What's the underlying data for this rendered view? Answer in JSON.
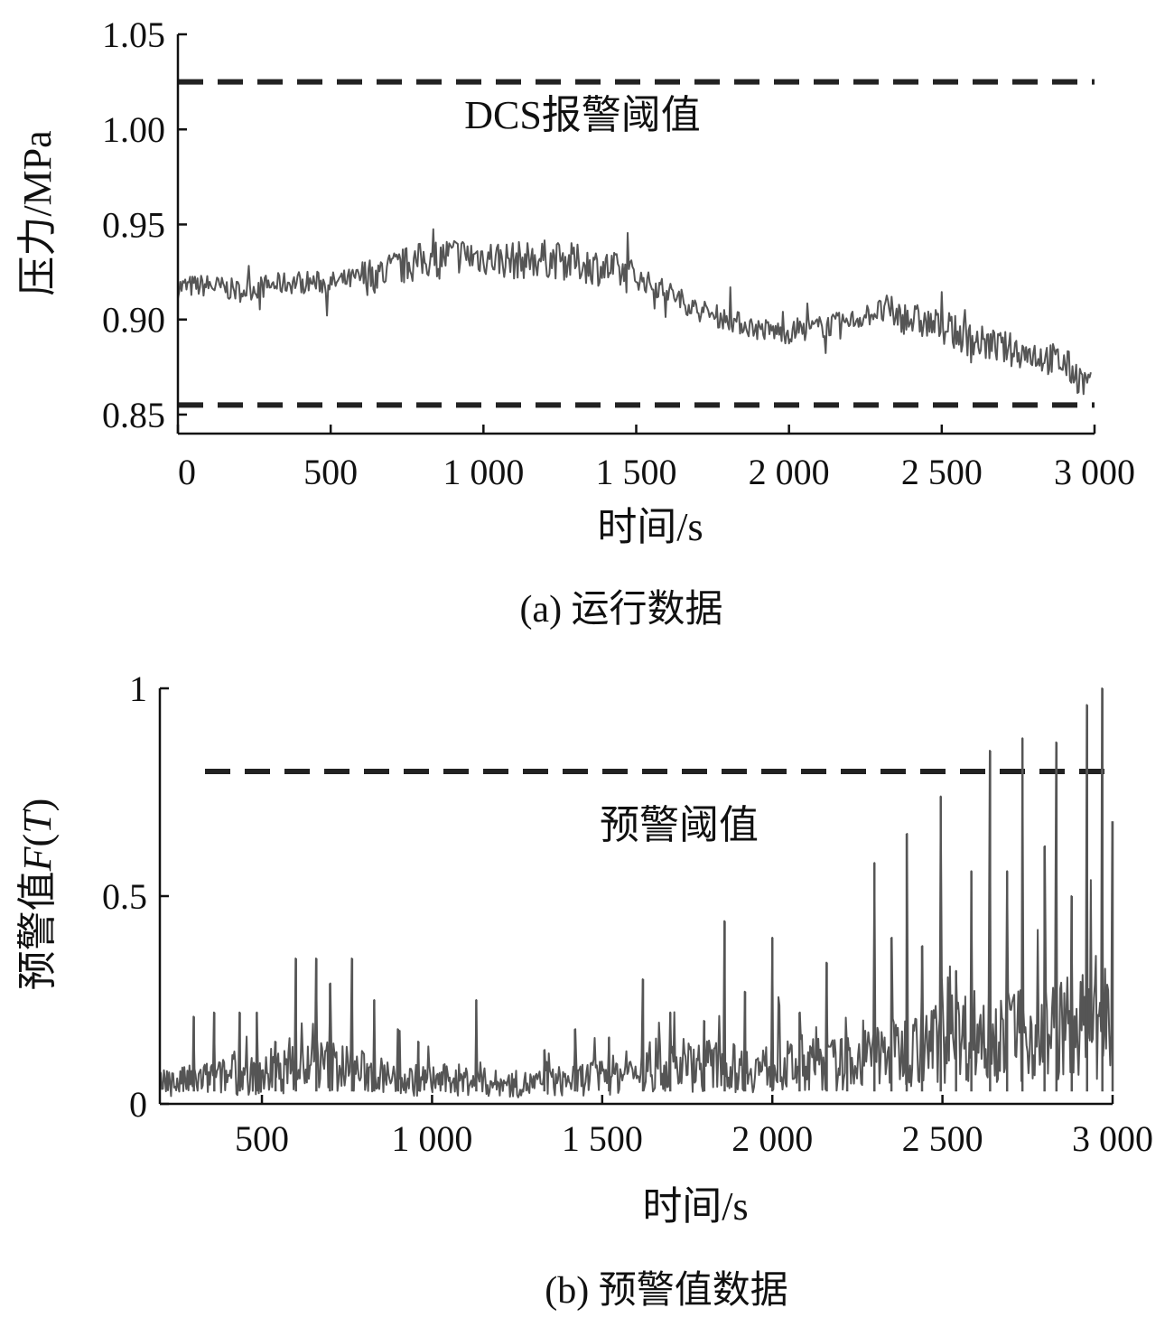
{
  "chart_data": [
    {
      "id": "a",
      "type": "line",
      "caption": "(a) 运行数据",
      "xlabel": "时间/s",
      "ylabel": "压力/MPa",
      "xlim": [
        0,
        3000
      ],
      "ylim": [
        0.84,
        1.05
      ],
      "xticks": [
        0,
        500,
        1000,
        1500,
        2000,
        2500,
        3000
      ],
      "xtick_labels": [
        "0",
        "500",
        "1 000",
        "1 500",
        "2 000",
        "2 500",
        "3 000"
      ],
      "yticks": [
        0.85,
        0.9,
        0.95,
        1.0,
        1.05
      ],
      "ytick_labels": [
        "0.85",
        "0.90",
        "0.95",
        "1.00",
        "1.05"
      ],
      "thresholds": [
        {
          "value": 1.025,
          "label": "DCS报警阈值"
        },
        {
          "value": 0.855,
          "label": ""
        }
      ],
      "series": [
        {
          "color": "#555555",
          "x": [
            0,
            100,
            200,
            300,
            400,
            500,
            600,
            700,
            800,
            900,
            1000,
            1100,
            1200,
            1300,
            1400,
            1500,
            1600,
            1700,
            1800,
            1900,
            2000,
            2100,
            2200,
            2300,
            2400,
            2500,
            2600,
            2700,
            2800,
            2900,
            2970
          ],
          "y": [
            0.917,
            0.918,
            0.915,
            0.918,
            0.92,
            0.919,
            0.922,
            0.926,
            0.931,
            0.934,
            0.933,
            0.931,
            0.932,
            0.93,
            0.927,
            0.922,
            0.915,
            0.905,
            0.9,
            0.895,
            0.893,
            0.896,
            0.899,
            0.905,
            0.9,
            0.896,
            0.889,
            0.885,
            0.882,
            0.877,
            0.866
          ]
        }
      ]
    },
    {
      "id": "b",
      "type": "line",
      "caption": "(b) 预警值数据",
      "xlabel": "时间/s",
      "ylabel": "预警值F(T)",
      "ylabel_parts": {
        "main": "预警值",
        "italic_f": "F",
        "paren_open": "(",
        "italic_t": "T",
        "paren_close": ")"
      },
      "xlim": [
        200,
        3000
      ],
      "ylim": [
        0,
        1
      ],
      "xticks": [
        500,
        1000,
        1500,
        2000,
        2500,
        3000
      ],
      "xtick_labels": [
        "500",
        "1 000",
        "1 500",
        "2 000",
        "2 500",
        "3 000"
      ],
      "yticks": [
        0,
        0.5,
        1
      ],
      "ytick_labels": [
        "0",
        "0.5",
        "1"
      ],
      "thresholds": [
        {
          "value": 0.8,
          "label": "预警阈值"
        }
      ],
      "series": [
        {
          "color": "#555555",
          "x": [
            200,
            300,
            400,
            500,
            600,
            700,
            800,
            900,
            1000,
            1100,
            1200,
            1300,
            1400,
            1500,
            1600,
            1700,
            1800,
            1900,
            2000,
            2100,
            2200,
            2300,
            2400,
            2500,
            2600,
            2700,
            2800,
            2900,
            2970
          ],
          "y": [
            0.05,
            0.06,
            0.07,
            0.07,
            0.09,
            0.1,
            0.08,
            0.06,
            0.06,
            0.06,
            0.05,
            0.05,
            0.06,
            0.07,
            0.08,
            0.09,
            0.1,
            0.09,
            0.09,
            0.1,
            0.1,
            0.12,
            0.14,
            0.16,
            0.18,
            0.17,
            0.18,
            0.2,
            0.18
          ]
        }
      ],
      "peaks": [
        {
          "x": 300,
          "y": 0.21
        },
        {
          "x": 360,
          "y": 0.22
        },
        {
          "x": 435,
          "y": 0.22
        },
        {
          "x": 485,
          "y": 0.22
        },
        {
          "x": 540,
          "y": 0.15
        },
        {
          "x": 600,
          "y": 0.35
        },
        {
          "x": 660,
          "y": 0.35
        },
        {
          "x": 700,
          "y": 0.29
        },
        {
          "x": 765,
          "y": 0.35
        },
        {
          "x": 830,
          "y": 0.25
        },
        {
          "x": 900,
          "y": 0.18
        },
        {
          "x": 960,
          "y": 0.15
        },
        {
          "x": 1130,
          "y": 0.25
        },
        {
          "x": 1330,
          "y": 0.13
        },
        {
          "x": 1420,
          "y": 0.18
        },
        {
          "x": 1520,
          "y": 0.16
        },
        {
          "x": 1620,
          "y": 0.3
        },
        {
          "x": 1700,
          "y": 0.22
        },
        {
          "x": 1800,
          "y": 0.2
        },
        {
          "x": 1860,
          "y": 0.44
        },
        {
          "x": 1920,
          "y": 0.27
        },
        {
          "x": 2000,
          "y": 0.4
        },
        {
          "x": 2080,
          "y": 0.22
        },
        {
          "x": 2160,
          "y": 0.34
        },
        {
          "x": 2220,
          "y": 0.15
        },
        {
          "x": 2300,
          "y": 0.58
        },
        {
          "x": 2350,
          "y": 0.4
        },
        {
          "x": 2395,
          "y": 0.65
        },
        {
          "x": 2440,
          "y": 0.38
        },
        {
          "x": 2495,
          "y": 0.74
        },
        {
          "x": 2540,
          "y": 0.32
        },
        {
          "x": 2585,
          "y": 0.56
        },
        {
          "x": 2640,
          "y": 0.85
        },
        {
          "x": 2690,
          "y": 0.56
        },
        {
          "x": 2735,
          "y": 0.88
        },
        {
          "x": 2800,
          "y": 0.62
        },
        {
          "x": 2835,
          "y": 0.87
        },
        {
          "x": 2880,
          "y": 0.5
        },
        {
          "x": 2925,
          "y": 0.96
        },
        {
          "x": 2970,
          "y": 1.0
        },
        {
          "x": 3000,
          "y": 0.68
        }
      ]
    }
  ]
}
